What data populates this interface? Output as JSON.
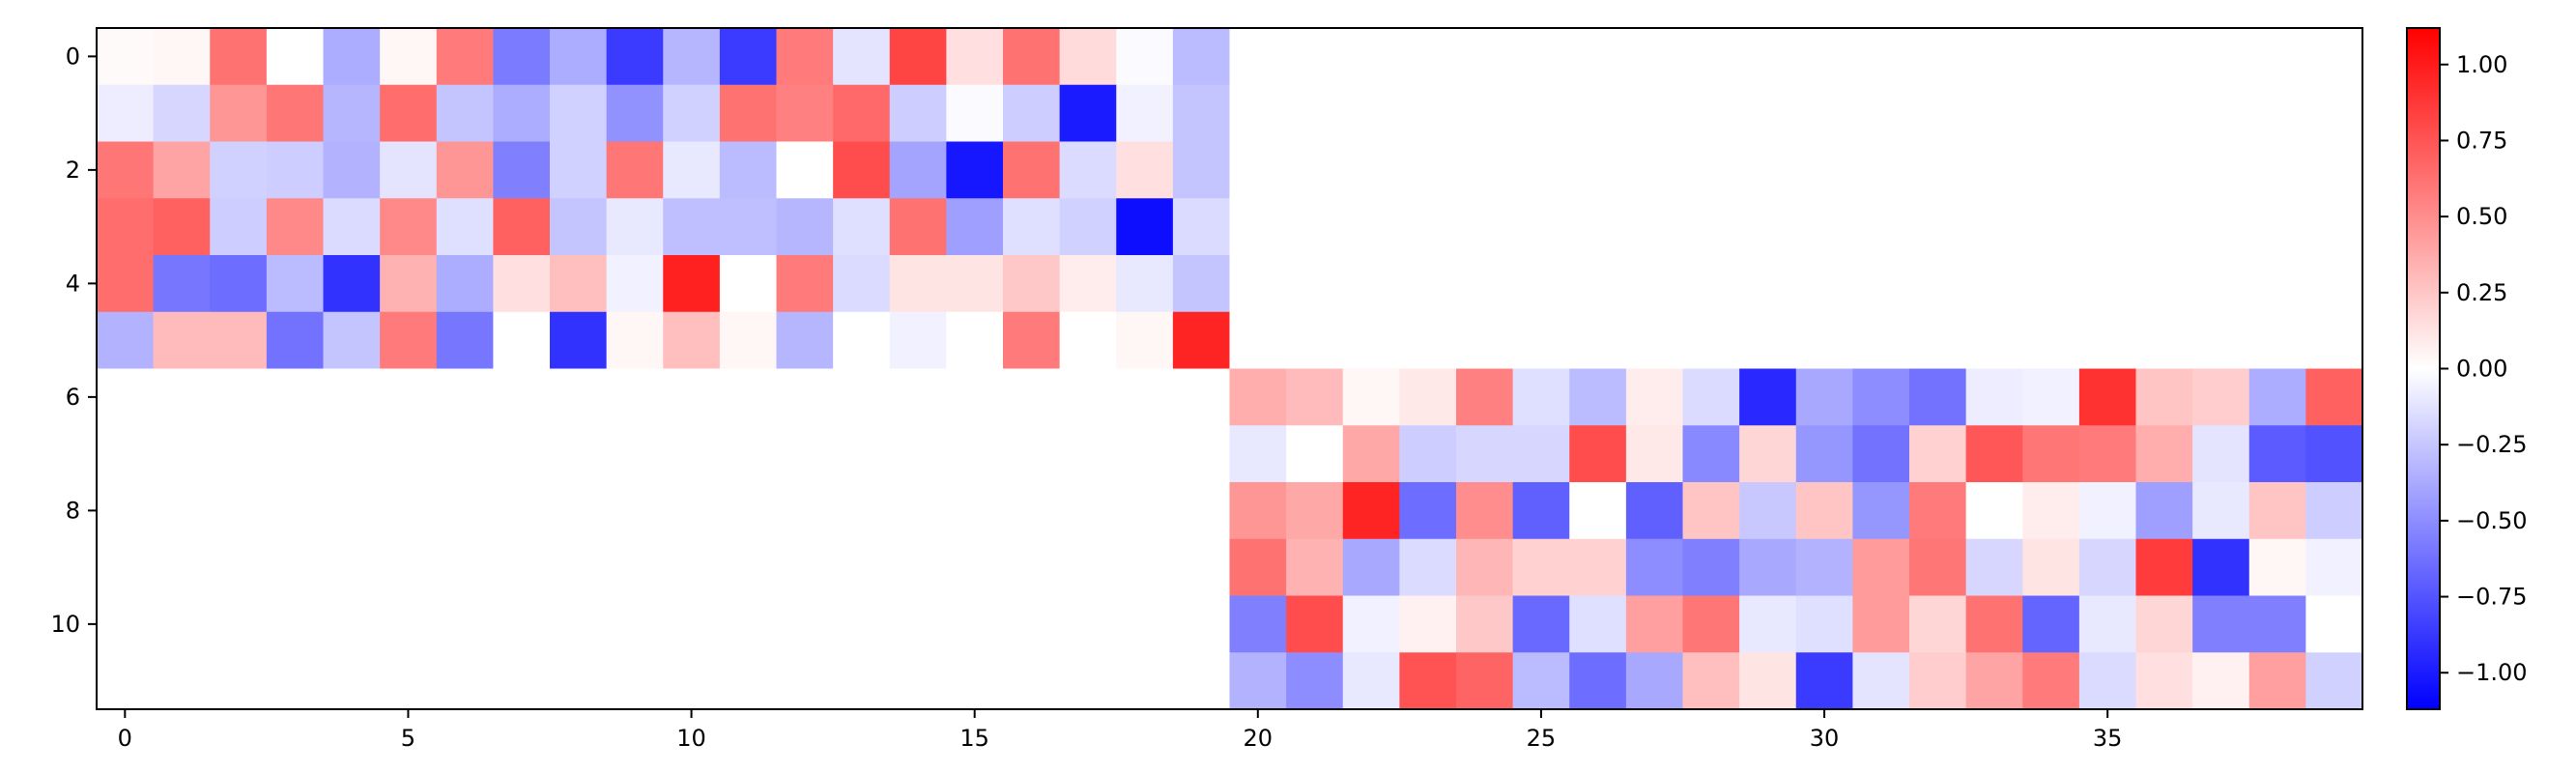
{
  "chart_data": {
    "type": "heatmap",
    "title": "",
    "xlabel": "",
    "ylabel": "",
    "colormap": "bwr",
    "colormap_colors": {
      "low": "#0000ff",
      "mid": "#ffffff",
      "high": "#ff0000"
    },
    "value_range": [
      -1.12,
      1.12
    ],
    "n_rows": 12,
    "n_cols": 40,
    "x_ticks": [
      0,
      5,
      10,
      15,
      20,
      25,
      30,
      35
    ],
    "y_ticks": [
      0,
      2,
      4,
      6,
      8,
      10
    ],
    "colorbar_ticks": [
      1.0,
      0.75,
      0.5,
      0.25,
      0.0,
      -0.25,
      -0.5,
      -0.75,
      -1.0
    ],
    "colorbar_labels": [
      "1.00",
      "0.75",
      "0.50",
      "0.25",
      "0.00",
      "−0.25",
      "−0.50",
      "−0.75",
      "−1.00"
    ],
    "values": [
      [
        0.02,
        0.04,
        0.62,
        0.0,
        -0.36,
        0.04,
        0.58,
        -0.58,
        -0.36,
        -0.86,
        -0.32,
        -0.86,
        0.58,
        -0.12,
        0.82,
        0.14,
        0.62,
        0.16,
        -0.02,
        -0.3,
        0,
        0,
        0,
        0,
        0,
        0,
        0,
        0,
        0,
        0,
        0,
        0,
        0,
        0,
        0,
        0,
        0,
        0,
        0,
        0
      ],
      [
        -0.08,
        -0.18,
        0.46,
        0.6,
        -0.32,
        0.64,
        -0.26,
        -0.36,
        -0.2,
        -0.48,
        -0.2,
        0.62,
        0.56,
        0.66,
        -0.22,
        -0.02,
        -0.22,
        -1.0,
        -0.06,
        -0.26,
        0,
        0,
        0,
        0,
        0,
        0,
        0,
        0,
        0,
        0,
        0,
        0,
        0,
        0,
        0,
        0,
        0,
        0,
        0,
        0
      ],
      [
        0.6,
        0.4,
        -0.2,
        -0.22,
        -0.34,
        -0.12,
        0.46,
        -0.56,
        -0.2,
        0.6,
        -0.1,
        -0.3,
        0.0,
        0.78,
        -0.4,
        -1.02,
        0.62,
        -0.16,
        0.14,
        -0.26,
        0,
        0,
        0,
        0,
        0,
        0,
        0,
        0,
        0,
        0,
        0,
        0,
        0,
        0,
        0,
        0,
        0,
        0,
        0,
        0
      ],
      [
        0.64,
        0.7,
        -0.22,
        0.52,
        -0.16,
        0.52,
        -0.14,
        0.7,
        -0.26,
        -0.1,
        -0.28,
        -0.28,
        -0.32,
        -0.14,
        0.62,
        -0.42,
        -0.14,
        -0.2,
        -1.06,
        -0.16,
        0,
        0,
        0,
        0,
        0,
        0,
        0,
        0,
        0,
        0,
        0,
        0,
        0,
        0,
        0,
        0,
        0,
        0,
        0,
        0
      ],
      [
        0.64,
        -0.6,
        -0.64,
        -0.3,
        -0.9,
        0.34,
        -0.36,
        0.14,
        0.28,
        -0.06,
        0.98,
        0.0,
        0.58,
        -0.16,
        0.12,
        0.12,
        0.24,
        0.08,
        -0.1,
        -0.26,
        0,
        0,
        0,
        0,
        0,
        0,
        0,
        0,
        0,
        0,
        0,
        0,
        0,
        0,
        0,
        0,
        0,
        0,
        0,
        0
      ],
      [
        -0.34,
        0.3,
        0.3,
        -0.62,
        -0.26,
        0.58,
        -0.6,
        0.0,
        -0.9,
        0.04,
        0.28,
        0.04,
        -0.32,
        0.0,
        -0.06,
        0.0,
        0.58,
        0.0,
        0.04,
        0.96,
        0,
        0,
        0,
        0,
        0,
        0,
        0,
        0,
        0,
        0,
        0,
        0,
        0,
        0,
        0,
        0,
        0,
        0,
        0,
        0
      ],
      [
        0,
        0,
        0,
        0,
        0,
        0,
        0,
        0,
        0,
        0,
        0,
        0,
        0,
        0,
        0,
        0,
        0,
        0,
        0,
        0,
        0.36,
        0.3,
        0.04,
        0.1,
        0.56,
        -0.14,
        -0.3,
        0.08,
        -0.16,
        -0.94,
        -0.38,
        -0.5,
        -0.62,
        -0.08,
        -0.06,
        0.9,
        0.26,
        0.22,
        -0.36,
        0.7
      ],
      [
        0,
        0,
        0,
        0,
        0,
        0,
        0,
        0,
        0,
        0,
        0,
        0,
        0,
        0,
        0,
        0,
        0,
        0,
        0,
        0,
        -0.1,
        0.0,
        0.38,
        -0.22,
        -0.18,
        -0.18,
        0.78,
        0.1,
        -0.52,
        0.18,
        -0.46,
        -0.62,
        0.2,
        0.74,
        0.6,
        0.58,
        0.36,
        -0.12,
        -0.72,
        -0.76
      ],
      [
        0,
        0,
        0,
        0,
        0,
        0,
        0,
        0,
        0,
        0,
        0,
        0,
        0,
        0,
        0,
        0,
        0,
        0,
        0,
        0,
        0.46,
        0.38,
        0.96,
        -0.64,
        0.5,
        -0.7,
        0.0,
        -0.7,
        0.26,
        -0.24,
        0.26,
        -0.46,
        0.58,
        0.0,
        0.08,
        -0.06,
        -0.42,
        -0.1,
        0.26,
        -0.22
      ],
      [
        0,
        0,
        0,
        0,
        0,
        0,
        0,
        0,
        0,
        0,
        0,
        0,
        0,
        0,
        0,
        0,
        0,
        0,
        0,
        0,
        0.62,
        0.34,
        -0.38,
        -0.16,
        0.32,
        0.2,
        0.2,
        -0.5,
        -0.56,
        -0.38,
        -0.34,
        0.44,
        0.6,
        -0.18,
        0.12,
        -0.18,
        0.86,
        -0.9,
        0.04,
        -0.06
      ],
      [
        0,
        0,
        0,
        0,
        0,
        0,
        0,
        0,
        0,
        0,
        0,
        0,
        0,
        0,
        0,
        0,
        0,
        0,
        0,
        0,
        -0.56,
        0.78,
        -0.06,
        0.06,
        0.24,
        -0.66,
        -0.14,
        0.42,
        0.6,
        -0.1,
        -0.14,
        0.44,
        0.18,
        0.62,
        -0.68,
        -0.1,
        0.18,
        -0.56,
        -0.56,
        0.0
      ],
      [
        0,
        0,
        0,
        0,
        0,
        0,
        0,
        0,
        0,
        0,
        0,
        0,
        0,
        0,
        0,
        0,
        0,
        0,
        0,
        0,
        -0.34,
        -0.5,
        -0.1,
        0.76,
        0.68,
        -0.3,
        -0.64,
        -0.38,
        0.28,
        0.12,
        -0.86,
        -0.12,
        0.22,
        0.4,
        0.58,
        -0.16,
        0.14,
        0.06,
        0.42,
        -0.2
      ]
    ]
  }
}
